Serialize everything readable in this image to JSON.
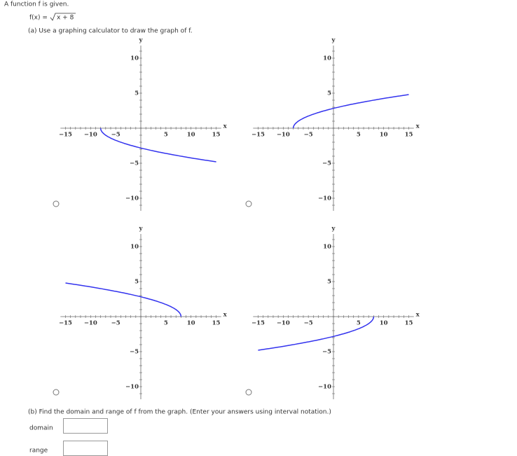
{
  "header": {
    "intro": "A function f is given.",
    "function": {
      "lhs": "f(x) =",
      "radicand": "x + 8"
    },
    "part_a": "(a) Use a graphing calculator to draw the graph of f."
  },
  "graphs": [
    {
      "x_label": "x",
      "y_label": "y",
      "x_ticks": [
        "−15",
        "−10",
        "−5",
        "5",
        "10",
        "15"
      ],
      "y_ticks": [
        "10",
        "5",
        "−5",
        "−10"
      ]
    },
    {
      "x_label": "x",
      "y_label": "y",
      "x_ticks": [
        "−15",
        "−10",
        "−5",
        "5",
        "10",
        "15"
      ],
      "y_ticks": [
        "10",
        "5",
        "−5",
        "−10"
      ]
    },
    {
      "x_label": "x",
      "y_label": "y",
      "x_ticks": [
        "−15",
        "−10",
        "−5",
        "5",
        "10",
        "15"
      ],
      "y_ticks": [
        "10",
        "5",
        "−5",
        "−10"
      ]
    },
    {
      "x_label": "x",
      "y_label": "y",
      "x_ticks": [
        "−15",
        "−10",
        "−5",
        "5",
        "10",
        "15"
      ],
      "y_ticks": [
        "10",
        "5",
        "−5",
        "−10"
      ]
    }
  ],
  "part_b": {
    "prompt": "(b) Find the domain and range of f from the graph. (Enter your answers using interval notation.)",
    "domain_label": "domain",
    "range_label": "range"
  }
}
